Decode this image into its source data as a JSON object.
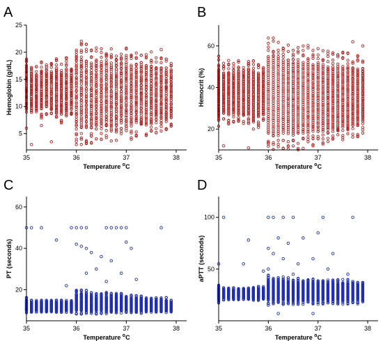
{
  "chart_data": [
    {
      "panel": "A",
      "type": "scatter",
      "xlabel": "Temperature",
      "xunit": "oC",
      "ylabel": "Hemoglobin (g/dL)",
      "xlim": [
        35,
        38
      ],
      "ylim": [
        2,
        25
      ],
      "xticks": [
        "35",
        "36",
        "37",
        "38"
      ],
      "yticks": [
        "5",
        "10",
        "15",
        "20",
        "25"
      ],
      "color": "#b22222",
      "points": {
        "x_start": 35.0,
        "x_end": 37.9,
        "x_step": 0.1,
        "dense_low": [
          10,
          10,
          10,
          9.5,
          10,
          9.5,
          9,
          8.5,
          9,
          9.5,
          6,
          6,
          6,
          6,
          6.5,
          6.5,
          6.5,
          6.5,
          6.5,
          7,
          6.5,
          6.5,
          7,
          7,
          7,
          7,
          7.5,
          7.5,
          7.5,
          8
        ],
        "dense_high": [
          17,
          16,
          16,
          16.5,
          16.5,
          16.5,
          17,
          16,
          17,
          16.5,
          19,
          19,
          18.5,
          18,
          18,
          18,
          18,
          18,
          18,
          18,
          18,
          17.5,
          17.5,
          17.5,
          17.5,
          17.5,
          17,
          17,
          17,
          16.5
        ],
        "outliers": [
          [
            35.0,
            18.5
          ],
          [
            35.0,
            6
          ],
          [
            35.1,
            3
          ],
          [
            35.5,
            3.5
          ],
          [
            35.3,
            6.5
          ],
          [
            36.0,
            5
          ],
          [
            36.1,
            20
          ],
          [
            36.6,
            19.5
          ],
          [
            37.7,
            20.5
          ],
          [
            36.3,
            5
          ],
          [
            35.8,
            19
          ],
          [
            37.0,
            19
          ]
        ]
      }
    },
    {
      "panel": "B",
      "type": "scatter",
      "xlabel": "Temperature",
      "xunit": "oC",
      "ylabel": "Hemocrit (%)",
      "xlim": [
        35,
        38
      ],
      "ylim": [
        10,
        70
      ],
      "xticks": [
        "35",
        "36",
        "37",
        "38"
      ],
      "yticks": [
        "20",
        "40",
        "60"
      ],
      "color": "#b22222",
      "points": {
        "x_start": 35.0,
        "x_end": 37.9,
        "x_step": 0.1,
        "dense_low": [
          26,
          28,
          27,
          28,
          27,
          27,
          27,
          25,
          26,
          27,
          18,
          17,
          17,
          18,
          18,
          18,
          18,
          18,
          19,
          19,
          19,
          19,
          20,
          20,
          20,
          21,
          21,
          22,
          22,
          24
        ],
        "dense_high": [
          48,
          47,
          47,
          47,
          48,
          47,
          49,
          48,
          47,
          47,
          55,
          55,
          54,
          53,
          53,
          52,
          52,
          52,
          52,
          51,
          51,
          51,
          50,
          50,
          50,
          50,
          50,
          49,
          49,
          48
        ],
        "outliers": [
          [
            35.0,
            55
          ],
          [
            35.1,
            12
          ],
          [
            35.6,
            11
          ],
          [
            36.0,
            13
          ],
          [
            36.1,
            57
          ],
          [
            36.3,
            56
          ],
          [
            36.9,
            12
          ],
          [
            37.7,
            62
          ],
          [
            37.9,
            60
          ],
          [
            35.2,
            53
          ],
          [
            36.5,
            56
          ],
          [
            36.4,
            14
          ]
        ]
      }
    },
    {
      "panel": "C",
      "type": "scatter",
      "xlabel": "Temperature",
      "xunit": "oC",
      "ylabel": "PT (seconds)",
      "xlim": [
        35,
        38
      ],
      "ylim": [
        5,
        65
      ],
      "xticks": [
        "35",
        "36",
        "37",
        "38"
      ],
      "yticks": [
        "20",
        "40",
        "60"
      ],
      "color": "#1f2fb5",
      "points": {
        "x_start": 35.0,
        "x_end": 37.9,
        "x_step": 0.1,
        "dense_low": [
          10,
          10,
          10,
          10,
          10,
          10,
          10,
          10,
          10,
          10,
          10,
          10,
          10,
          10,
          10,
          10,
          10,
          10,
          10,
          10,
          10,
          10,
          10,
          10,
          10,
          10,
          10,
          10,
          10,
          10
        ],
        "dense_high": [
          15,
          14,
          14,
          14,
          14,
          14,
          14,
          14,
          14,
          14,
          18,
          18,
          18,
          17,
          17,
          17,
          17,
          17,
          17,
          17,
          16,
          16,
          16,
          16,
          15,
          15,
          15,
          15,
          15,
          14
        ],
        "outliers": [
          [
            35.0,
            50
          ],
          [
            35.1,
            50
          ],
          [
            35.3,
            50
          ],
          [
            35.9,
            50
          ],
          [
            36.0,
            50
          ],
          [
            36.1,
            50
          ],
          [
            36.2,
            50
          ],
          [
            36.6,
            50
          ],
          [
            36.7,
            50
          ],
          [
            36.8,
            50
          ],
          [
            36.9,
            50
          ],
          [
            37.0,
            50
          ],
          [
            37.7,
            50
          ],
          [
            35.6,
            44
          ],
          [
            36.0,
            42
          ],
          [
            36.1,
            41
          ],
          [
            36.2,
            40
          ],
          [
            36.3,
            38
          ],
          [
            36.5,
            36
          ],
          [
            36.7,
            34
          ],
          [
            37.0,
            43
          ],
          [
            37.1,
            40
          ],
          [
            36.4,
            30
          ],
          [
            36.9,
            28
          ],
          [
            37.2,
            25
          ],
          [
            36.2,
            28
          ],
          [
            35.8,
            22
          ],
          [
            36.6,
            24
          ]
        ]
      }
    },
    {
      "panel": "D",
      "type": "scatter",
      "xlabel": "Temperature",
      "xunit": "oC",
      "ylabel": "aPTT (seconds)",
      "xlim": [
        35,
        38
      ],
      "ylim": [
        0,
        120
      ],
      "xticks": [
        "35",
        "36",
        "37",
        "38"
      ],
      "yticks": [
        "50",
        "100"
      ],
      "color": "#1f2fb5",
      "points": {
        "x_start": 35.0,
        "x_end": 37.9,
        "x_step": 0.1,
        "dense_low": [
          20,
          22,
          22,
          22,
          22,
          22,
          22,
          22,
          22,
          22,
          20,
          20,
          20,
          20,
          20,
          20,
          20,
          20,
          20,
          20,
          20,
          20,
          20,
          20,
          20,
          20,
          20,
          20,
          20,
          20
        ],
        "dense_high": [
          32,
          30,
          30,
          30,
          30,
          30,
          30,
          31,
          31,
          31,
          40,
          38,
          38,
          38,
          38,
          37,
          37,
          37,
          37,
          37,
          37,
          37,
          36,
          36,
          36,
          36,
          36,
          36,
          35,
          35
        ],
        "outliers": [
          [
            35.0,
            55
          ],
          [
            35.1,
            100
          ],
          [
            35.6,
            78
          ],
          [
            36.0,
            100
          ],
          [
            36.1,
            100
          ],
          [
            36.3,
            100
          ],
          [
            36.5,
            100
          ],
          [
            37.1,
            100
          ],
          [
            37.7,
            100
          ],
          [
            35.5,
            55
          ],
          [
            36.0,
            70
          ],
          [
            36.1,
            65
          ],
          [
            36.2,
            80
          ],
          [
            36.4,
            75
          ],
          [
            36.7,
            80
          ],
          [
            37.0,
            85
          ],
          [
            37.3,
            65
          ],
          [
            36.3,
            60
          ],
          [
            36.6,
            55
          ],
          [
            36.9,
            60
          ],
          [
            37.2,
            50
          ],
          [
            36.2,
            7
          ],
          [
            36.9,
            7
          ],
          [
            36.0,
            50
          ],
          [
            35.9,
            48
          ],
          [
            36.5,
            45
          ],
          [
            37.6,
            45
          ]
        ]
      }
    }
  ]
}
